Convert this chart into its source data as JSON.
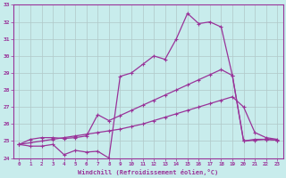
{
  "xlabel": "Windchill (Refroidissement éolien,°C)",
  "background_color": "#c8ecec",
  "grid_color": "#b0c8c8",
  "line_color": "#993399",
  "xlim": [
    -0.5,
    23.5
  ],
  "ylim": [
    24,
    33
  ],
  "xticks": [
    0,
    1,
    2,
    3,
    4,
    5,
    6,
    7,
    8,
    9,
    10,
    11,
    12,
    13,
    14,
    15,
    16,
    17,
    18,
    19,
    20,
    21,
    22,
    23
  ],
  "yticks": [
    24,
    25,
    26,
    27,
    28,
    29,
    30,
    31,
    32,
    33
  ],
  "s1": [
    24.8,
    24.7,
    24.7,
    24.8,
    24.2,
    24.45,
    24.35,
    24.4,
    24.0,
    28.8,
    29.0,
    29.5,
    30.0,
    29.8,
    31.0,
    32.5,
    31.9,
    32.0,
    31.7,
    28.85,
    25.0,
    25.05,
    25.1,
    25.05
  ],
  "s2": [
    24.8,
    25.1,
    25.2,
    25.2,
    25.15,
    25.2,
    25.3,
    26.55,
    26.2,
    26.5,
    26.8,
    27.1,
    27.4,
    27.7,
    28.0,
    28.3,
    28.6,
    28.9,
    29.2,
    28.85,
    25.0,
    25.1,
    25.1,
    25.05
  ],
  "s3": [
    24.8,
    24.9,
    25.0,
    25.1,
    25.2,
    25.3,
    25.4,
    25.5,
    25.6,
    25.7,
    25.85,
    26.0,
    26.2,
    26.4,
    26.6,
    26.8,
    27.0,
    27.2,
    27.4,
    27.6,
    27.0,
    25.5,
    25.2,
    25.1
  ]
}
